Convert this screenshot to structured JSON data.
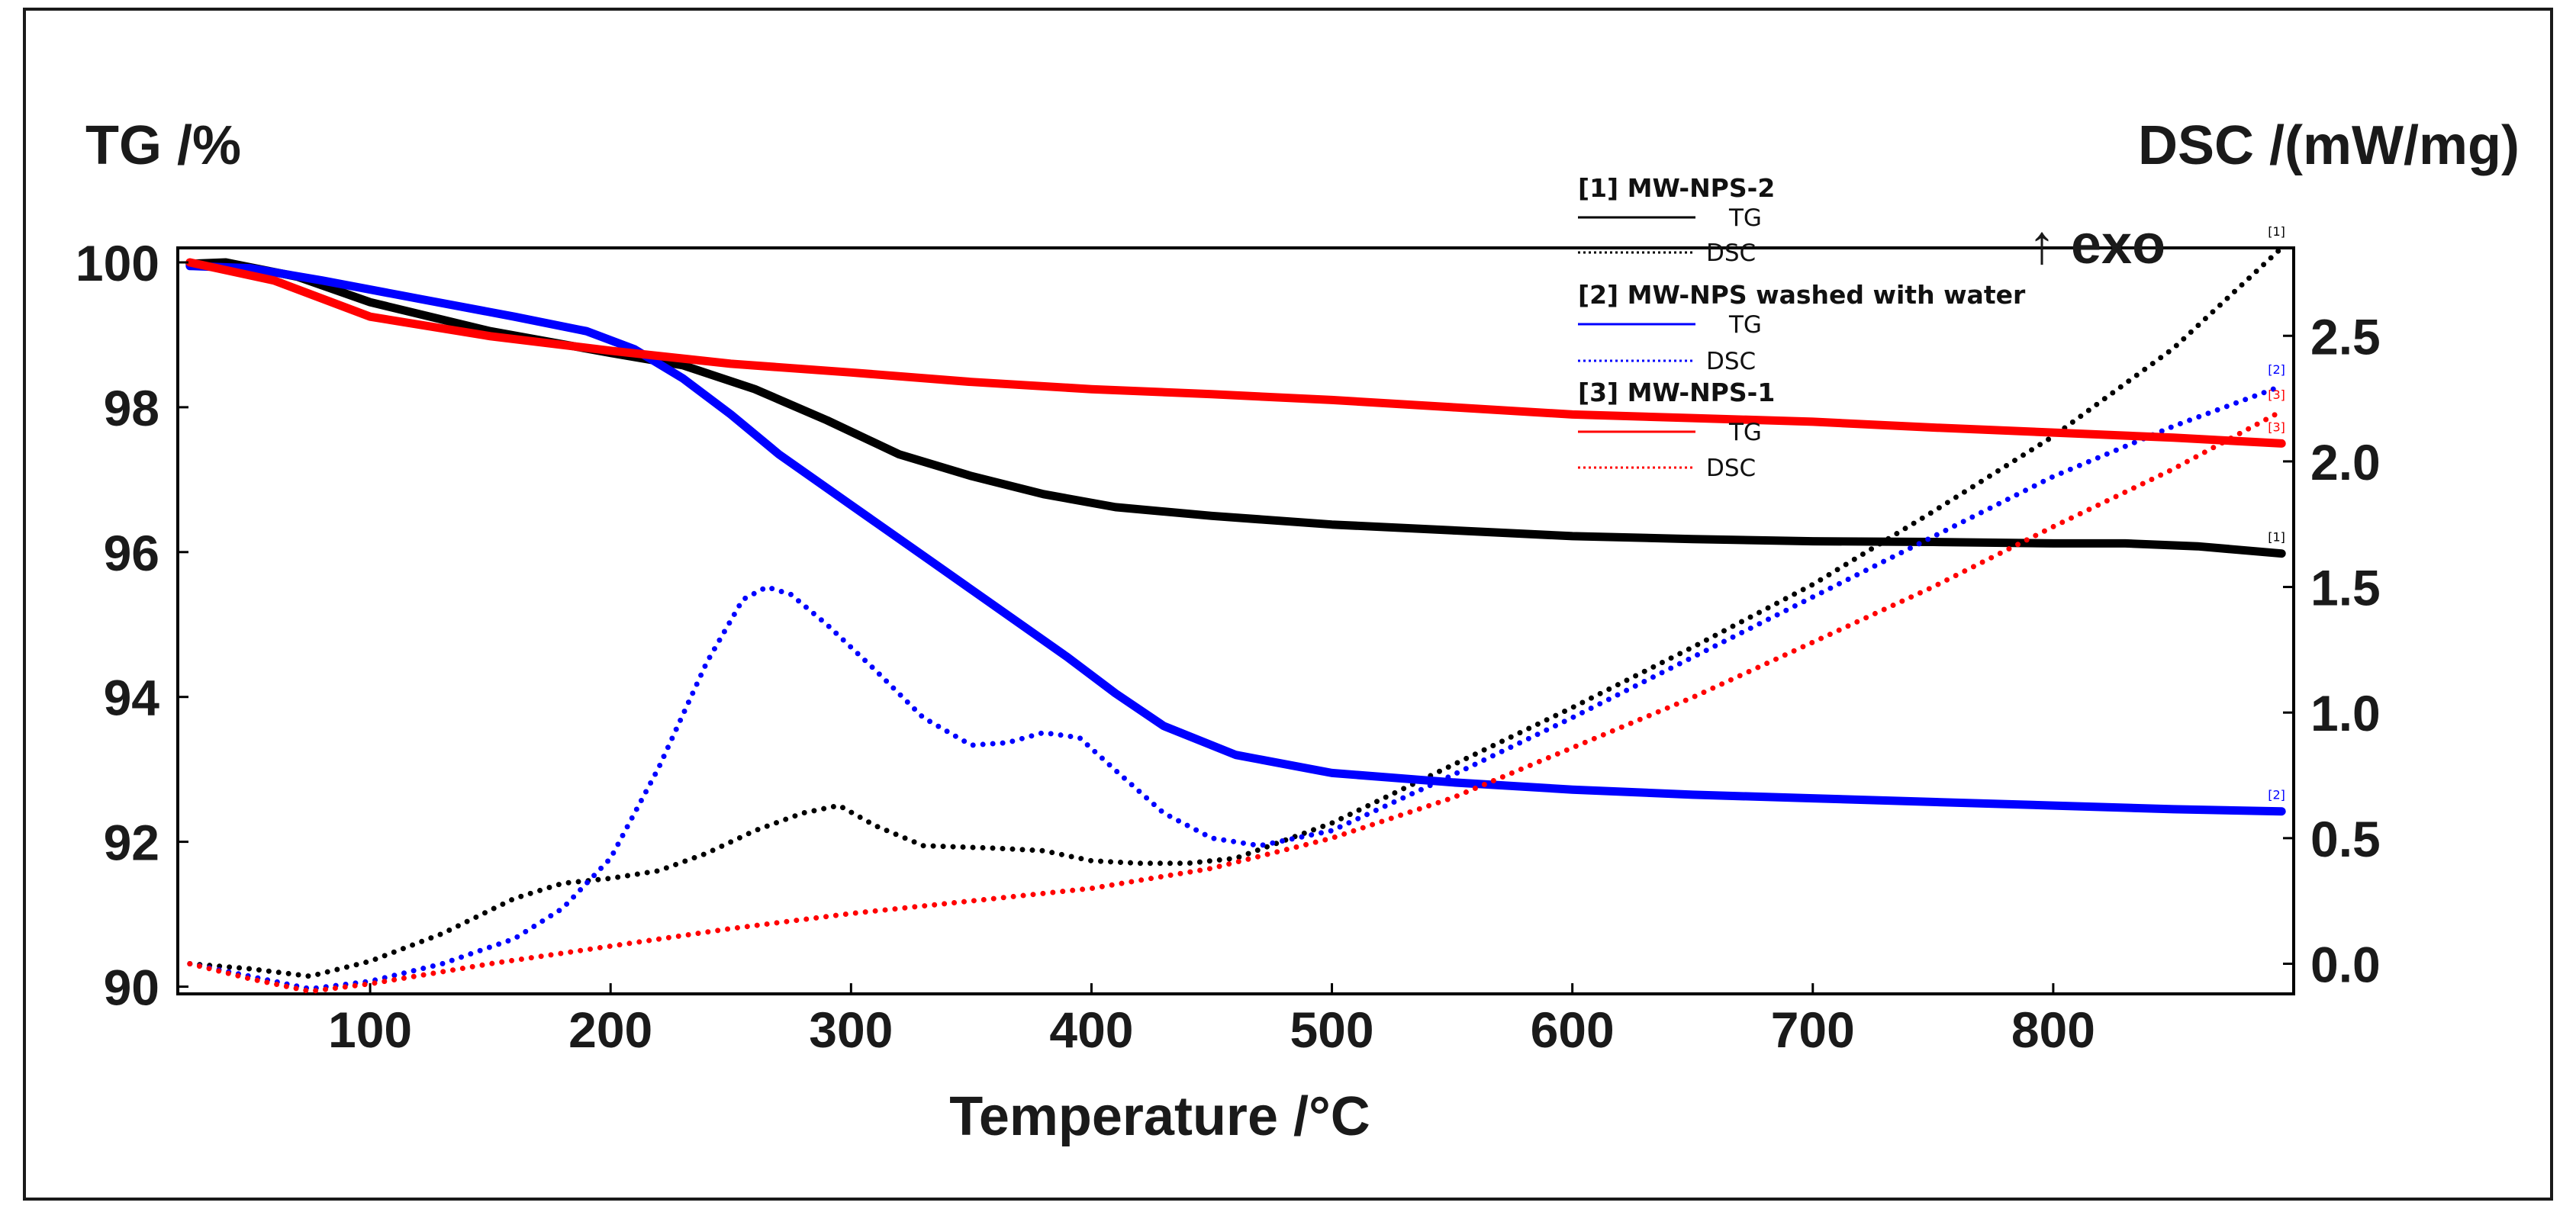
{
  "chart_data": {
    "type": "line",
    "y_left_title": "TG /%",
    "y_right_title": "DSC /(mW/mg)",
    "x_title": "Temperature /°C",
    "exo_label": "↑ exo",
    "xlim": [
      20,
      900
    ],
    "ylim_left": [
      89.9,
      100.2
    ],
    "ylim_right": [
      -0.12,
      2.85
    ],
    "x_ticks": [
      100,
      200,
      300,
      400,
      500,
      600,
      700,
      800
    ],
    "x_tick_labels": [
      "100",
      "200",
      "300",
      "400",
      "500",
      "600",
      "700",
      "800"
    ],
    "y_left_ticks": [
      90,
      92,
      94,
      96,
      98,
      100
    ],
    "y_left_tick_labels": [
      "90",
      "92",
      "94",
      "96",
      "98",
      "100"
    ],
    "y_right_ticks": [
      0.0,
      0.5,
      1.0,
      1.5,
      2.0,
      2.5
    ],
    "y_right_tick_labels": [
      "0.0",
      "0.5",
      "1.0",
      "1.5",
      "2.0",
      "2.5"
    ],
    "legend": [
      {
        "header": "[1] MW-NPS-2",
        "tg_label": "TG",
        "dsc_label": "DSC",
        "color": "#000000"
      },
      {
        "header": "[2] MW-NPS washed with water",
        "tg_label": "TG",
        "dsc_label": "DSC",
        "color": "#0000ff"
      },
      {
        "header": "[3] MW-NPS-1",
        "tg_label": "TG",
        "dsc_label": "DSC",
        "color": "#ff0000"
      }
    ],
    "series": [
      {
        "name": "[1] MW-NPS-2 TG",
        "axis": "left",
        "style": "solid",
        "color": "#000000",
        "tag": "[1]",
        "x": [
          25,
          40,
          70,
          100,
          150,
          200,
          230,
          260,
          290,
          320,
          350,
          380,
          410,
          450,
          500,
          550,
          600,
          650,
          700,
          750,
          800,
          830,
          860,
          895
        ],
        "y": [
          99.98,
          100.0,
          99.8,
          99.45,
          99.05,
          98.75,
          98.58,
          98.25,
          97.82,
          97.35,
          97.05,
          96.8,
          96.62,
          96.5,
          96.38,
          96.3,
          96.22,
          96.18,
          96.15,
          96.14,
          96.12,
          96.12,
          96.08,
          95.98
        ]
      },
      {
        "name": "[1] MW-NPS-2 DSC",
        "axis": "right",
        "style": "dotted",
        "color": "#000000",
        "tag": "[1]",
        "x": [
          25,
          50,
          75,
          100,
          130,
          160,
          180,
          200,
          220,
          240,
          260,
          280,
          295,
          310,
          330,
          360,
          380,
          400,
          420,
          440,
          460,
          500,
          550,
          600,
          650,
          700,
          750,
          800,
          850,
          895
        ],
        "y": [
          0.0,
          -0.02,
          -0.05,
          0.01,
          0.12,
          0.26,
          0.32,
          0.34,
          0.37,
          0.44,
          0.53,
          0.6,
          0.63,
          0.55,
          0.47,
          0.46,
          0.45,
          0.41,
          0.4,
          0.4,
          0.42,
          0.56,
          0.79,
          1.02,
          1.26,
          1.51,
          1.8,
          2.1,
          2.45,
          2.85
        ]
      },
      {
        "name": "[2] MW-NPS washed with water TG",
        "axis": "left",
        "style": "solid",
        "color": "#0000ff",
        "tag": "[2]",
        "x": [
          25,
          50,
          80,
          120,
          160,
          190,
          210,
          230,
          250,
          270,
          300,
          330,
          360,
          390,
          410,
          430,
          460,
          500,
          550,
          600,
          650,
          700,
          750,
          800,
          850,
          895
        ],
        "y": [
          99.95,
          99.92,
          99.75,
          99.5,
          99.25,
          99.05,
          98.8,
          98.4,
          97.9,
          97.35,
          96.65,
          95.95,
          95.25,
          94.55,
          94.05,
          93.6,
          93.2,
          92.95,
          92.82,
          92.72,
          92.65,
          92.6,
          92.55,
          92.5,
          92.45,
          92.42
        ]
      },
      {
        "name": "[2] MW-NPS washed with water DSC",
        "axis": "right",
        "style": "dotted",
        "color": "#0000ff",
        "tag": "[2]",
        "x": [
          25,
          50,
          75,
          100,
          130,
          160,
          180,
          200,
          220,
          240,
          255,
          265,
          275,
          290,
          310,
          330,
          350,
          365,
          380,
          395,
          410,
          430,
          450,
          470,
          500,
          550,
          600,
          650,
          700,
          750,
          800,
          850,
          895
        ],
        "y": [
          0.0,
          -0.05,
          -0.1,
          -0.07,
          0.0,
          0.1,
          0.22,
          0.42,
          0.78,
          1.2,
          1.45,
          1.5,
          1.47,
          1.35,
          1.17,
          0.98,
          0.87,
          0.88,
          0.92,
          0.9,
          0.77,
          0.6,
          0.5,
          0.47,
          0.53,
          0.75,
          0.98,
          1.22,
          1.46,
          1.7,
          1.94,
          2.14,
          2.3
        ]
      },
      {
        "name": "[3] MW-NPS-1 TG",
        "axis": "left",
        "style": "solid",
        "color": "#ff0000",
        "tag": "[3]",
        "x": [
          25,
          60,
          100,
          150,
          200,
          250,
          300,
          350,
          400,
          450,
          500,
          550,
          600,
          650,
          700,
          750,
          800,
          850,
          895
        ],
        "y": [
          100.0,
          99.75,
          99.25,
          98.98,
          98.78,
          98.6,
          98.48,
          98.35,
          98.25,
          98.18,
          98.1,
          98.0,
          97.9,
          97.85,
          97.8,
          97.72,
          97.65,
          97.58,
          97.5
        ]
      },
      {
        "name": "[3] MW-NPS-1 DSC",
        "axis": "right",
        "style": "dotted",
        "color": "#ff0000",
        "tag": "[3]",
        "x": [
          25,
          50,
          75,
          100,
          150,
          200,
          250,
          300,
          350,
          400,
          450,
          500,
          550,
          600,
          650,
          700,
          750,
          800,
          850,
          895
        ],
        "y": [
          0.0,
          -0.06,
          -0.11,
          -0.08,
          0.0,
          0.07,
          0.14,
          0.2,
          0.25,
          0.3,
          0.38,
          0.5,
          0.66,
          0.86,
          1.06,
          1.28,
          1.5,
          1.74,
          1.97,
          2.2
        ]
      }
    ]
  }
}
